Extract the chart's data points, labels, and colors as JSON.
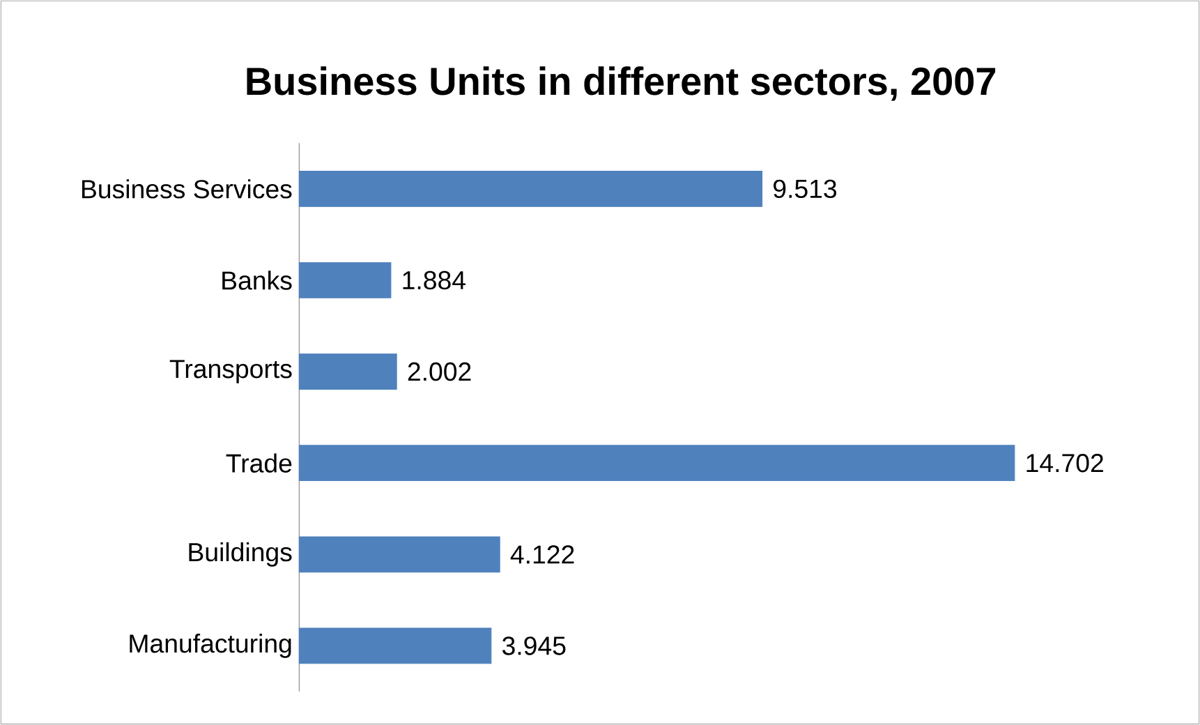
{
  "chart_data": {
    "type": "bar",
    "orientation": "horizontal",
    "title": "Business Units in different sectors, 2007",
    "categories": [
      "Business Services",
      "Banks",
      "Transports",
      "Trade",
      "Buildings",
      "Manufacturing"
    ],
    "values": [
      9.513,
      1.884,
      2.002,
      14.702,
      4.122,
      3.945
    ],
    "color": "#4f81bd",
    "data_labels": true
  }
}
